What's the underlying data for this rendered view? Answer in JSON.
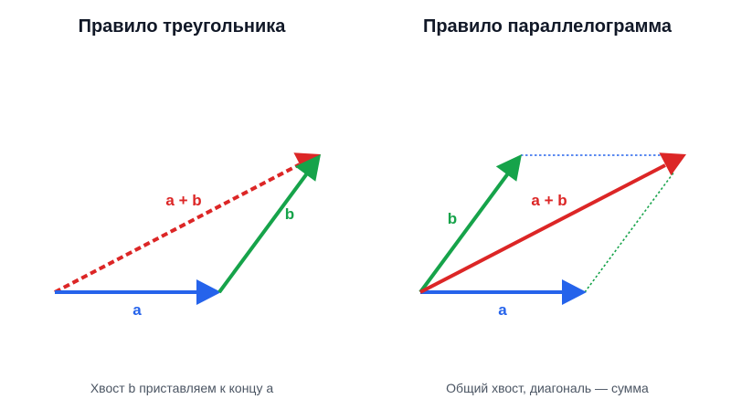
{
  "colors": {
    "a": "#2563eb",
    "b": "#16a34a",
    "sum": "#dc2626",
    "title": "#111827",
    "caption": "#4b5563"
  },
  "triangle": {
    "title": "Правило треугольника",
    "caption": "Хвост b приставляем к концу a",
    "label_a": "a",
    "label_b": "b",
    "label_sum": "a + b"
  },
  "parallelogram": {
    "title": "Правило параллелограмма",
    "caption": "Общий хвост, диагональ — сумма",
    "label_a": "a",
    "label_b": "b",
    "label_sum": "a + b"
  }
}
